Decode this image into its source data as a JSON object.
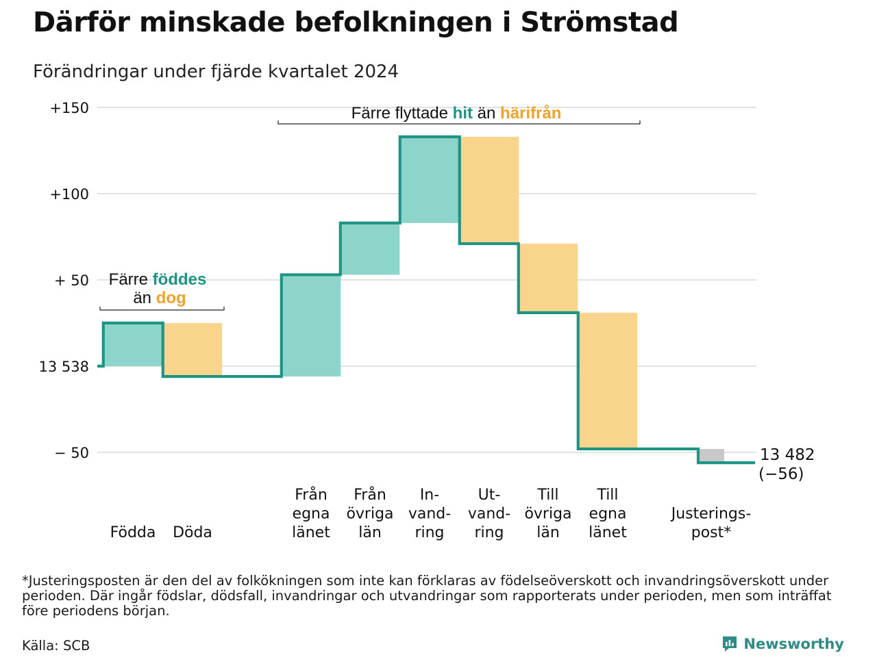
{
  "title": "Därför minskade befolkningen i Strömstad",
  "subtitle": "Förändringar under fjärde kvartalet 2024",
  "footnote": "*Justeringsposten är den del av folkökningen som inte kan förklaras av födelseöverskott och invandringsöverskott under perioden. Där ingår födslar, dödsfall, invandringar och utvandringar som rapporterats under perioden, men som inträffat före periodens början.",
  "source": "Källa: SCB",
  "brand": {
    "name": "Newsworthy",
    "icon": "newsworthy-logo-icon"
  },
  "colors": {
    "increase": "#8dd4cb",
    "decrease": "#f9d48c",
    "adjustment": "#c8c8c8",
    "line": "#1e9584",
    "grid": "#e3e3e3",
    "accent_teal": "#1e9584",
    "accent_orange": "#f0a22a"
  },
  "annotations": {
    "natural": {
      "line1_prefix": "Färre ",
      "line1_highlight": "föddes",
      "line2_prefix": "än ",
      "line2_highlight": "dog"
    },
    "migration": {
      "prefix": "Färre flyttade ",
      "highlight1": "hit",
      "middle": " än ",
      "highlight2": "härifrån"
    }
  },
  "chart_data": {
    "type": "waterfall",
    "start_value": 13538,
    "end_value": 13482,
    "end_change": "(−56)",
    "end_label": "13 482",
    "ylim": [
      -56,
      153
    ],
    "y_ticks": [
      {
        "value": 150,
        "label": "+150"
      },
      {
        "value": 100,
        "label": "+100"
      },
      {
        "value": 50,
        "label": "+ 50"
      },
      {
        "value": 0,
        "label": "13 538"
      },
      {
        "value": -50,
        "label": "−  50"
      }
    ],
    "steps": [
      {
        "label": [
          "Födda"
        ],
        "change": 25,
        "kind": "increase"
      },
      {
        "label": [
          "Döda"
        ],
        "change": -31,
        "kind": "decrease"
      },
      {
        "label": [
          "Från",
          "egna",
          "länet"
        ],
        "change": 59,
        "kind": "increase"
      },
      {
        "label": [
          "Från",
          "övriga",
          "län"
        ],
        "change": 30,
        "kind": "increase"
      },
      {
        "label": [
          "In-",
          "vand-",
          "ring"
        ],
        "change": 50,
        "kind": "increase"
      },
      {
        "label": [
          "Ut-",
          "vand-",
          "ring"
        ],
        "change": -62,
        "kind": "decrease"
      },
      {
        "label": [
          "Till",
          "övriga",
          "län"
        ],
        "change": -40,
        "kind": "decrease"
      },
      {
        "label": [
          "Till",
          "egna",
          "länet"
        ],
        "change": -79,
        "kind": "decrease"
      },
      {
        "label": [
          "Justerings-",
          "post*"
        ],
        "change": -8,
        "kind": "adjustment"
      }
    ],
    "grid": true
  }
}
